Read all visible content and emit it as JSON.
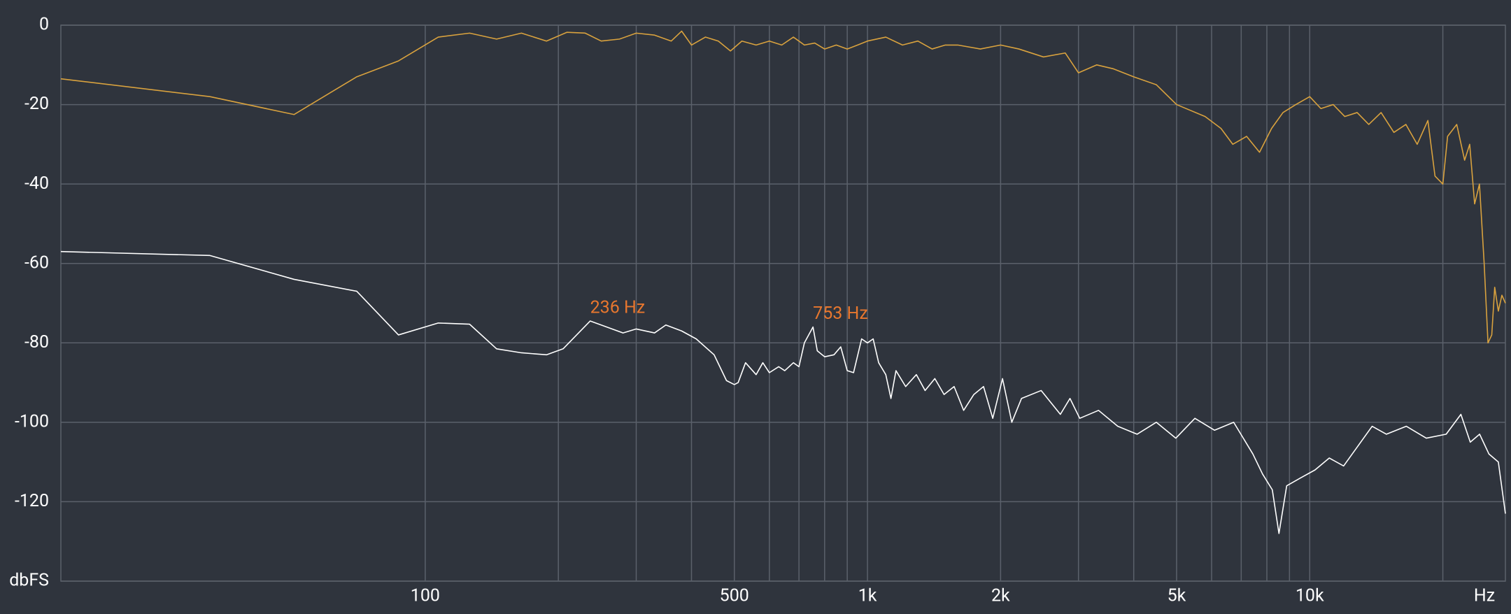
{
  "chart_data": {
    "type": "line",
    "xscale": "log",
    "grid": true,
    "background": "#2f343d",
    "grid_color": "#5b616b",
    "text_color": "#ffffff",
    "xlim": [
      15,
      27700
    ],
    "ylim": [
      -140,
      0
    ],
    "xticks": [
      100,
      500,
      {
        "value": 1000,
        "label": "1k"
      },
      {
        "value": 2000,
        "label": "2k"
      },
      {
        "value": 5000,
        "label": "5k"
      },
      {
        "value": 10000,
        "label": "10k"
      }
    ],
    "xgrid_minor": [
      200,
      300,
      400,
      600,
      700,
      800,
      900,
      3000,
      4000,
      6000,
      7000,
      8000,
      9000,
      20000
    ],
    "x_label": "Hz",
    "yticks": [
      0,
      -20,
      -40,
      -60,
      -80,
      -100,
      -120,
      {
        "value": -140,
        "label": "dbFS"
      }
    ],
    "series": [
      {
        "color": "#d9a23e",
        "x": [
          15,
          32.6,
          50.5,
          70,
          87,
          107,
          126,
          145,
          165,
          188,
          209,
          230,
          250,
          275,
          300,
          330,
          360,
          380,
          400,
          430,
          460,
          490,
          520,
          560,
          600,
          640,
          680,
          720,
          760,
          800,
          850,
          900,
          950,
          1000,
          1100,
          1200,
          1300,
          1400,
          1500,
          1600,
          1800,
          2000,
          2200,
          2500,
          2800,
          3000,
          3300,
          3600,
          4000,
          4500,
          5000,
          5800,
          6300,
          6700,
          7200,
          7700,
          8200,
          8700,
          9300,
          10000,
          10600,
          11300,
          12000,
          12800,
          13600,
          14500,
          15500,
          16500,
          17500,
          18500,
          19200,
          20000,
          20500,
          21500,
          22400,
          23000,
          23600,
          24200,
          24800,
          25300,
          25800,
          26200,
          26700,
          27200,
          27700
        ],
        "values": [
          -13.5,
          -18,
          -22.5,
          -13,
          -9,
          -3,
          -2,
          -3.5,
          -2,
          -4,
          -1.8,
          -2,
          -4,
          -3.5,
          -2,
          -2.5,
          -4,
          -1.5,
          -5,
          -3,
          -4,
          -6.5,
          -4,
          -5,
          -4,
          -5,
          -3,
          -5,
          -4.5,
          -6,
          -5,
          -6,
          -5,
          -4,
          -3,
          -5,
          -4,
          -6,
          -5,
          -5,
          -6,
          -5,
          -6,
          -8,
          -7,
          -12,
          -10,
          -11,
          -13,
          -15,
          -20,
          -23,
          -26,
          -30,
          -28,
          -32,
          -26,
          -22,
          -20,
          -18,
          -21,
          -20,
          -23,
          -22,
          -25,
          -22,
          -27,
          -25,
          -30,
          -24,
          -38,
          -40,
          -28,
          -25,
          -34,
          -30,
          -45,
          -40,
          -60,
          -80,
          -78,
          -66,
          -72,
          -68,
          -70
        ]
      },
      {
        "color": "#ffffff",
        "x": [
          15,
          32.6,
          50.5,
          70,
          87,
          107,
          126,
          145,
          165,
          188,
          205,
          236,
          250,
          280,
          300,
          330,
          350,
          380,
          410,
          450,
          480,
          500,
          510,
          530,
          560,
          580,
          600,
          630,
          650,
          680,
          700,
          720,
          753,
          770,
          800,
          840,
          870,
          900,
          930,
          970,
          1000,
          1030,
          1060,
          1100,
          1130,
          1160,
          1220,
          1290,
          1350,
          1420,
          1490,
          1570,
          1650,
          1740,
          1830,
          1920,
          2020,
          2120,
          2230,
          2470,
          2730,
          2870,
          3020,
          3330,
          3680,
          4070,
          4500,
          4980,
          5500,
          6090,
          6730,
          7440,
          7820,
          8230,
          8520,
          8870,
          9540,
          10280,
          11070,
          11930,
          12850,
          13840,
          14910,
          16540,
          18350,
          20350,
          21970,
          23070,
          24220,
          25430,
          26700,
          27700
        ],
        "values": [
          -57,
          -58,
          -64,
          -67,
          -78,
          -75,
          -75.3,
          -81.5,
          -82.5,
          -83,
          -81.5,
          -74.5,
          -75.5,
          -77.5,
          -76.5,
          -77.5,
          -75.5,
          -77,
          -79,
          -83,
          -89.5,
          -90.5,
          -90,
          -85,
          -88,
          -85,
          -87.5,
          -86,
          -87,
          -85,
          -86,
          -80,
          -76,
          -82,
          -83.5,
          -83,
          -81,
          -87,
          -87.5,
          -79,
          -80,
          -79,
          -85,
          -88,
          -94,
          -87,
          -91,
          -88,
          -92,
          -89,
          -93,
          -91,
          -97,
          -93,
          -91,
          -99,
          -89,
          -100,
          -94,
          -92,
          -98,
          -94,
          -99,
          -97,
          -101,
          -103,
          -100,
          -104,
          -99,
          -102,
          -100,
          -108,
          -113,
          -117,
          -128,
          -116,
          -114,
          -112,
          -109,
          -111,
          -106,
          -101,
          -103,
          -101,
          -104,
          -103,
          -98,
          -105,
          -103,
          -108,
          -110,
          -123
        ]
      }
    ],
    "annotations": [
      {
        "text": "236 Hz",
        "x": 236,
        "y": -74.5,
        "color": "#e8772e"
      },
      {
        "text": "753 Hz",
        "x": 753,
        "y": -76,
        "color": "#e8772e"
      }
    ]
  }
}
